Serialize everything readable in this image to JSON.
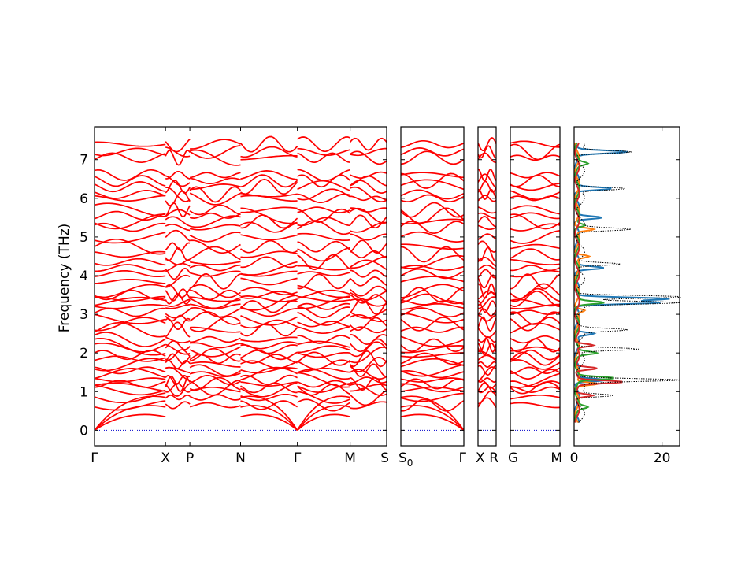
{
  "chart_data": [
    {
      "type": "line",
      "panel": "band-structure",
      "ylabel": "Frequency (THz)",
      "ylim": [
        -0.4,
        7.85
      ],
      "yticks": [
        0,
        1,
        2,
        3,
        4,
        5,
        6,
        7
      ],
      "line_color": "#ff0000",
      "zero_line_color": "#0000cc",
      "segments": [
        {
          "labels": [
            "Γ",
            "X",
            "P",
            "N",
            "Γ",
            "M",
            "S"
          ],
          "x": [
            0,
            0.35,
            0.47,
            0.72,
            1.0,
            1.26,
            1.44
          ]
        },
        {
          "labels": [
            "S0",
            "Γ"
          ],
          "x": [
            0,
            1
          ]
        },
        {
          "labels": [
            "X",
            "R"
          ],
          "x": [
            0,
            1
          ]
        },
        {
          "labels": [
            "G",
            "M"
          ],
          "x": [
            0,
            1
          ]
        }
      ],
      "band_levels_thz": [
        0.65,
        0.85,
        1.05,
        1.1,
        1.2,
        1.3,
        1.45,
        1.55,
        1.7,
        1.85,
        1.95,
        2.1,
        2.2,
        2.35,
        2.6,
        2.75,
        2.9,
        3.05,
        3.2,
        3.3,
        3.4,
        3.5,
        3.6,
        3.85,
        4.05,
        4.2,
        4.35,
        4.55,
        4.75,
        5.0,
        5.25,
        5.4,
        5.55,
        5.7,
        6.0,
        6.1,
        6.3,
        6.45,
        6.6,
        7.05,
        7.2,
        7.4
      ],
      "acoustic_top_thz": [
        0.35,
        0.5,
        0.65
      ]
    },
    {
      "type": "line",
      "panel": "density-of-states",
      "xlim": [
        0,
        24
      ],
      "xticks": [
        0,
        20
      ],
      "ylim": [
        -0.4,
        7.85
      ],
      "series": [
        {
          "color": "#1f77b4",
          "peaks": [
            [
              7.2,
              11
            ],
            [
              6.25,
              8
            ],
            [
              5.5,
              6
            ],
            [
              4.2,
              6
            ],
            [
              3.4,
              21
            ],
            [
              3.3,
              19
            ],
            [
              2.5,
              4
            ],
            [
              1.3,
              7
            ]
          ]
        },
        {
          "color": "#ff7f0e",
          "peaks": [
            [
              5.2,
              4
            ],
            [
              4.5,
              3
            ],
            [
              3.1,
              2
            ],
            [
              1.2,
              5
            ]
          ]
        },
        {
          "color": "#2ca02c",
          "peaks": [
            [
              6.9,
              2
            ],
            [
              5.3,
              2
            ],
            [
              3.3,
              6
            ],
            [
              2.0,
              4
            ],
            [
              1.35,
              8
            ],
            [
              0.6,
              2
            ]
          ]
        },
        {
          "color": "#d62728",
          "peaks": [
            [
              2.2,
              4
            ],
            [
              1.6,
              5
            ],
            [
              1.25,
              10
            ],
            [
              0.9,
              4
            ]
          ]
        },
        {
          "color": "#000000",
          "dotted": true,
          "peaks": [
            [
              7.2,
              12
            ],
            [
              6.25,
              11
            ],
            [
              5.2,
              11
            ],
            [
              4.3,
              10
            ],
            [
              3.45,
              24
            ],
            [
              3.3,
              22
            ],
            [
              2.6,
              10
            ],
            [
              2.1,
              14
            ],
            [
              1.3,
              23
            ],
            [
              0.9,
              8
            ]
          ]
        }
      ]
    }
  ]
}
